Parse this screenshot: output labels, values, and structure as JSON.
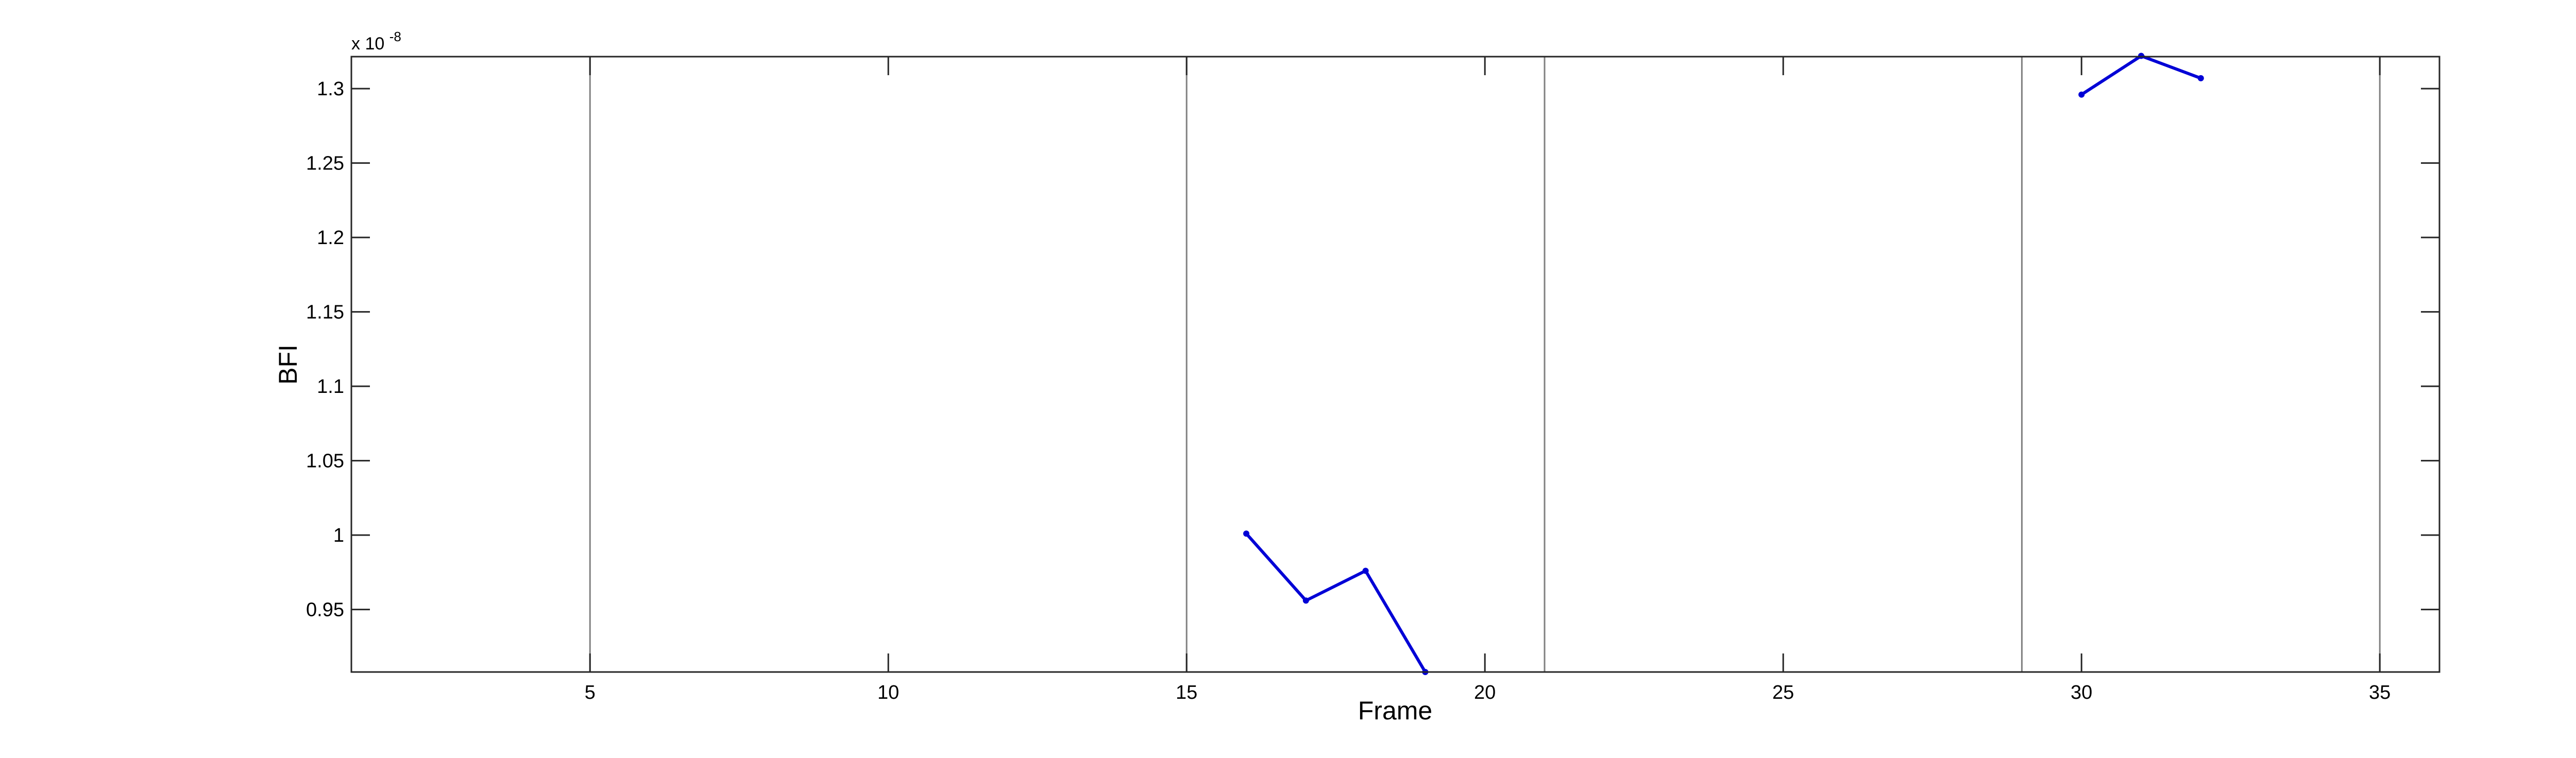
{
  "chart_data": {
    "type": "line",
    "title": "",
    "xlabel": "Frame",
    "ylabel": "BFI",
    "xlim": [
      1,
      36
    ],
    "ylim": [
      0.908,
      1.3215
    ],
    "y_multiplier_label": "x 10",
    "y_multiplier_exponent": "-8",
    "grid": false,
    "legend": "none",
    "line_color": "#0000d6",
    "marker": "dot",
    "x_ticks": [
      5,
      10,
      15,
      20,
      25,
      30,
      35
    ],
    "x_tick_labels": [
      "5",
      "10",
      "15",
      "20",
      "25",
      "30",
      "35"
    ],
    "y_ticks": [
      0.95,
      1.0,
      1.05,
      1.1,
      1.15,
      1.2,
      1.25,
      1.3
    ],
    "y_tick_labels": [
      "0.95",
      "1",
      "1.05",
      "1.1",
      "1.15",
      "1.2",
      "1.25",
      "1.3"
    ],
    "vertical_lines": [
      5,
      15,
      21,
      29,
      35
    ],
    "vertical_line_color": "#808080",
    "series": [
      {
        "points": [
          [
            16,
            1.001
          ],
          [
            17,
            0.956
          ],
          [
            18,
            0.976
          ],
          [
            19,
            0.908
          ]
        ]
      },
      {
        "points": [
          [
            30,
            1.296
          ],
          [
            31,
            1.322
          ],
          [
            32,
            1.307
          ]
        ]
      }
    ]
  }
}
